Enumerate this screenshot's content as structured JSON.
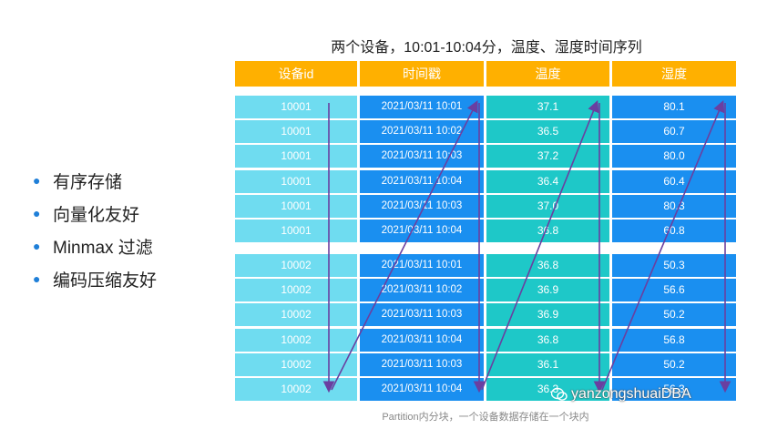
{
  "title": "两个设备，10:01-10:04分，温度、湿度时间序列",
  "bullets": [
    "有序存储",
    "向量化友好",
    "Minmax 过滤",
    "编码压缩友好"
  ],
  "table": {
    "headers": [
      "设备id",
      "时间戳",
      "温度",
      "湿度"
    ],
    "group1": [
      [
        "10001",
        "2021/03/11 10:01",
        "37.1",
        "80.1"
      ],
      [
        "10001",
        "2021/03/11 10:02",
        "36.5",
        "60.7"
      ],
      [
        "10001",
        "2021/03/11 10:03",
        "37.2",
        "80.0"
      ],
      [
        "10001",
        "2021/03/11 10:04",
        "36.4",
        "60.4"
      ],
      [
        "10001",
        "2021/03/11 10:03",
        "37.0",
        "80.3"
      ],
      [
        "10001",
        "2021/03/11 10:04",
        "36.8",
        "60.8"
      ]
    ],
    "group2": [
      [
        "10002",
        "2021/03/11 10:01",
        "36.8",
        "50.3"
      ],
      [
        "10002",
        "2021/03/11 10:02",
        "36.9",
        "56.6"
      ],
      [
        "10002",
        "2021/03/11 10:03",
        "36.9",
        "50.2"
      ],
      [
        "10002",
        "2021/03/11 10:04",
        "36.8",
        "56.8"
      ],
      [
        "10002",
        "2021/03/11 10:03",
        "36.1",
        "50.2"
      ],
      [
        "10002",
        "2021/03/11 10:04",
        "36.3",
        "56.3"
      ]
    ]
  },
  "caption": "Partition内分块，一个设备数据存储在一个块内",
  "watermark": "yanzongshuaiDBA",
  "colors": {
    "header": "#ffb000",
    "col_id": "#6fdcf0",
    "col_time": "#1a8ff0",
    "col_temp": "#1ec8c8",
    "col_humidity": "#1a8ff0",
    "arrow": "#6a3fa0",
    "bullet_dot": "#1f7fd8"
  }
}
